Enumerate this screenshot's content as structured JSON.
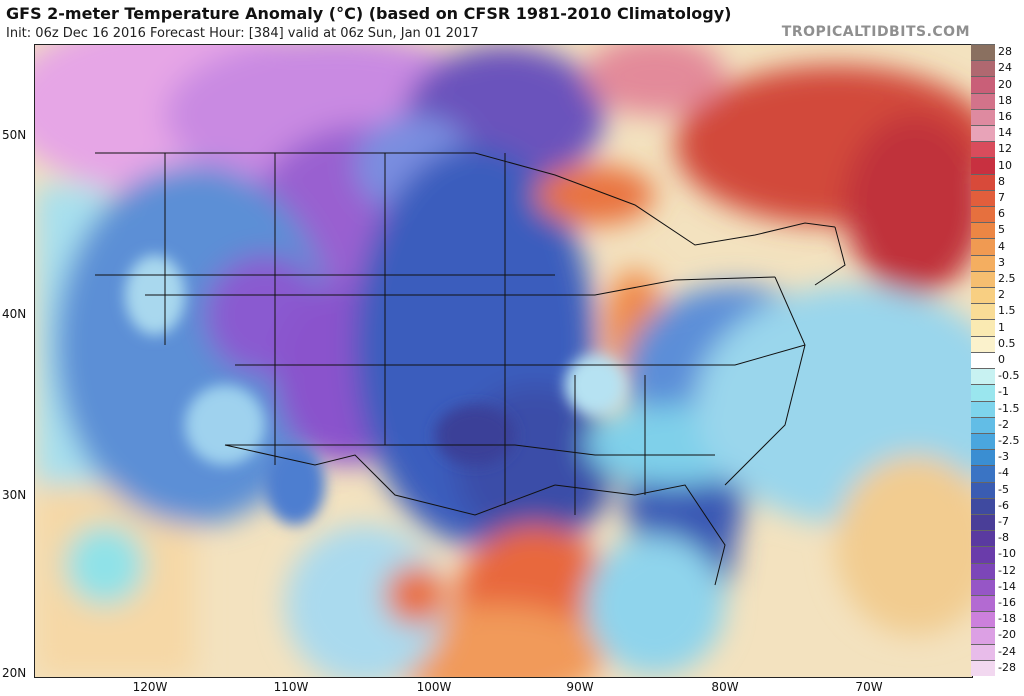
{
  "header": {
    "title": "GFS 2-meter Temperature Anomaly (°C) (based on CFSR 1981-2010 Climatology)",
    "subtitle": "Init: 06z Dec 16 2016   Forecast Hour: [384]   valid at 06z Sun, Jan 01 2017",
    "brand": "TROPICALTIDBITS.COM"
  },
  "axes": {
    "lat_labels": [
      "50N",
      "40N",
      "30N",
      "20N"
    ],
    "lon_labels": [
      "120W",
      "110W",
      "100W",
      "90W",
      "80W",
      "70W"
    ]
  },
  "colorbar": {
    "labels": [
      "28",
      "24",
      "20",
      "18",
      "16",
      "14",
      "12",
      "10",
      "8",
      "7",
      "6",
      "5",
      "4",
      "3",
      "2.5",
      "2",
      "1.5",
      "1",
      "0.5",
      "0",
      "-0.5",
      "-1",
      "-1.5",
      "-2",
      "-2.5",
      "-3",
      "-4",
      "-5",
      "-6",
      "-7",
      "-8",
      "-10",
      "-12",
      "-14",
      "-16",
      "-18",
      "-20",
      "-24",
      "-28"
    ],
    "colors": [
      "#8a7060",
      "#b06870",
      "#c95f78",
      "#d3738a",
      "#de8aa0",
      "#e8a3b8",
      "#d94c5c",
      "#c83040",
      "#d84a3a",
      "#e25e3c",
      "#e6703e",
      "#ec8644",
      "#f09a52",
      "#f4ae60",
      "#f6be70",
      "#f8cf82",
      "#f9dc96",
      "#faeab2",
      "#fbf2cc",
      "#ffffff",
      "#c8f2f2",
      "#9ae6ee",
      "#7ed4ec",
      "#62bde6",
      "#4aa6de",
      "#3a8ed2",
      "#3a74c4",
      "#3a5cb2",
      "#3f4aa0",
      "#4a3e98",
      "#5a3aa0",
      "#6a3caa",
      "#7c46b8",
      "#9656c6",
      "#b36ad2",
      "#cc80dc",
      "#dca0e4",
      "#e8bcea",
      "#f2d8f0"
    ]
  }
}
